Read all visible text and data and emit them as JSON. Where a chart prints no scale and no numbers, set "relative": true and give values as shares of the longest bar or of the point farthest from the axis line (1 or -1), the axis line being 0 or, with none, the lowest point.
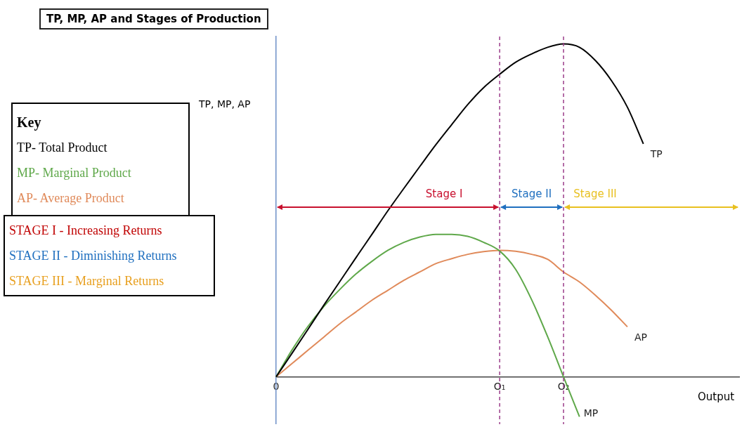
{
  "chart_data": {
    "type": "line",
    "title": "TP, MP, AP and Stages of Production",
    "xlabel": "Output",
    "ylabel": "TP, MP, AP",
    "legend_title": "Key",
    "legend": "left",
    "relative": true,
    "marker": "none",
    "line_style": "solid",
    "categories": [
      "0",
      null,
      null,
      null,
      null,
      null,
      null,
      null,
      null,
      null,
      null,
      null,
      null,
      null,
      "O₁",
      null,
      null,
      null,
      "O₂",
      null,
      null,
      null,
      null,
      null,
      null,
      null,
      null,
      null,
      null,
      null
    ],
    "series": [
      {
        "name": "TP- Total Product",
        "color": "#000000",
        "values": [
          0,
          0.071,
          0.143,
          0.216,
          0.287,
          0.358,
          0.428,
          0.499,
          0.566,
          0.632,
          0.697,
          0.758,
          0.818,
          0.869,
          0.909,
          0.945,
          0.97,
          0.99,
          1,
          0.99,
          0.95,
          0.89,
          0.81,
          0.7,
          null,
          null,
          null,
          null,
          null,
          null
        ]
      },
      {
        "name": "MP- Marginal Product",
        "color": "#5fa84a",
        "values": [
          0,
          0.081,
          0.152,
          0.212,
          0.263,
          0.309,
          0.347,
          0.38,
          0.404,
          0.42,
          0.428,
          0.428,
          0.422,
          0.404,
          0.378,
          0.323,
          0.232,
          0.121,
          0,
          -0.12,
          null,
          null,
          null,
          null,
          null,
          null,
          null,
          null,
          null,
          null
        ]
      },
      {
        "name": "AP- Average Product",
        "color": "#e08a5a",
        "values": [
          0,
          0.04,
          0.08,
          0.12,
          0.16,
          0.195,
          0.23,
          0.26,
          0.29,
          0.315,
          0.34,
          0.355,
          0.368,
          0.376,
          0.38,
          0.377,
          0.368,
          0.353,
          0.315,
          0.285,
          0.245,
          0.2,
          0.15,
          null,
          null,
          null,
          null,
          null,
          null,
          null
        ]
      }
    ],
    "ref_lines": [
      {
        "axis": "x",
        "value": "O₁",
        "color": "#9b3d8a",
        "line_style": "dashed"
      },
      {
        "axis": "x",
        "value": "O₂",
        "color": "#9b3d8a",
        "line_style": "dashed"
      }
    ],
    "annotations": [
      "Stage I",
      "Stage II",
      "Stage III",
      "TP",
      "MP",
      "AP",
      "STAGE I - Increasing Returns",
      "STAGE II - Diminishing Returns",
      "STAGE III - Marginal Returns"
    ]
  }
}
